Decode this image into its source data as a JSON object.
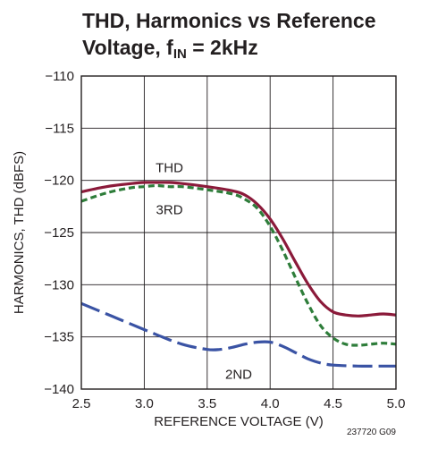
{
  "title_line1": "THD, Harmonics vs Reference",
  "title_line2_main": "Voltage, f",
  "title_line2_sub": "IN",
  "title_line2_tail": " = 2kHz",
  "figure_id": "237720 G09",
  "chart_data": {
    "type": "line",
    "xlabel": "REFERENCE VOLTAGE (V)",
    "ylabel": "HARMONICS, THD (dBFS)",
    "xlim": [
      2.5,
      5.0
    ],
    "ylim": [
      -140,
      -110
    ],
    "xticks": [
      2.5,
      3.0,
      3.5,
      4.0,
      4.5,
      5.0
    ],
    "xtick_labels": [
      "2.5",
      "3.0",
      "3.5",
      "4.0",
      "4.5",
      "5.0"
    ],
    "yticks": [
      -110,
      -115,
      -120,
      -125,
      -130,
      -135,
      -140
    ],
    "ytick_labels": [
      "−110",
      "−115",
      "−120",
      "−125",
      "−130",
      "−135",
      "−140"
    ],
    "grid": true,
    "series": [
      {
        "name": "THD",
        "color": "#8b1a3a",
        "style": "solid",
        "label_at": [
          3.2,
          -118.8
        ],
        "x": [
          2.5,
          2.7,
          2.9,
          3.0,
          3.1,
          3.2,
          3.3,
          3.5,
          3.7,
          3.8,
          3.9,
          4.0,
          4.1,
          4.2,
          4.3,
          4.4,
          4.5,
          4.6,
          4.7,
          4.8,
          4.9,
          5.0
        ],
        "y": [
          -121.1,
          -120.6,
          -120.3,
          -120.2,
          -120.2,
          -120.2,
          -120.3,
          -120.6,
          -121.0,
          -121.4,
          -122.3,
          -123.7,
          -125.6,
          -127.8,
          -129.9,
          -131.6,
          -132.6,
          -132.9,
          -133.0,
          -132.9,
          -132.8,
          -132.9
        ]
      },
      {
        "name": "3RD",
        "color": "#2e7d3a",
        "style": "short-dash",
        "label_at": [
          3.2,
          -122.8
        ],
        "x": [
          2.5,
          2.7,
          2.9,
          3.0,
          3.1,
          3.2,
          3.3,
          3.5,
          3.7,
          3.8,
          3.9,
          4.0,
          4.1,
          4.2,
          4.3,
          4.4,
          4.5,
          4.6,
          4.7,
          4.8,
          4.9,
          5.0
        ],
        "y": [
          -122.0,
          -121.2,
          -120.7,
          -120.6,
          -120.5,
          -120.6,
          -120.6,
          -120.9,
          -121.3,
          -121.8,
          -122.7,
          -124.4,
          -126.7,
          -129.3,
          -131.8,
          -133.9,
          -135.1,
          -135.7,
          -135.8,
          -135.7,
          -135.6,
          -135.7
        ]
      },
      {
        "name": "2ND",
        "color": "#3a53a4",
        "style": "long-dash",
        "label_at": [
          3.75,
          -138.6
        ],
        "x": [
          2.5,
          2.7,
          2.9,
          3.1,
          3.3,
          3.5,
          3.6,
          3.7,
          3.8,
          3.9,
          4.0,
          4.1,
          4.2,
          4.3,
          4.4,
          4.5,
          4.7,
          4.9,
          5.0
        ],
        "y": [
          -131.8,
          -132.8,
          -133.8,
          -134.8,
          -135.7,
          -136.2,
          -136.2,
          -136.0,
          -135.7,
          -135.5,
          -135.5,
          -135.9,
          -136.5,
          -137.1,
          -137.5,
          -137.7,
          -137.8,
          -137.8,
          -137.8
        ]
      }
    ]
  }
}
